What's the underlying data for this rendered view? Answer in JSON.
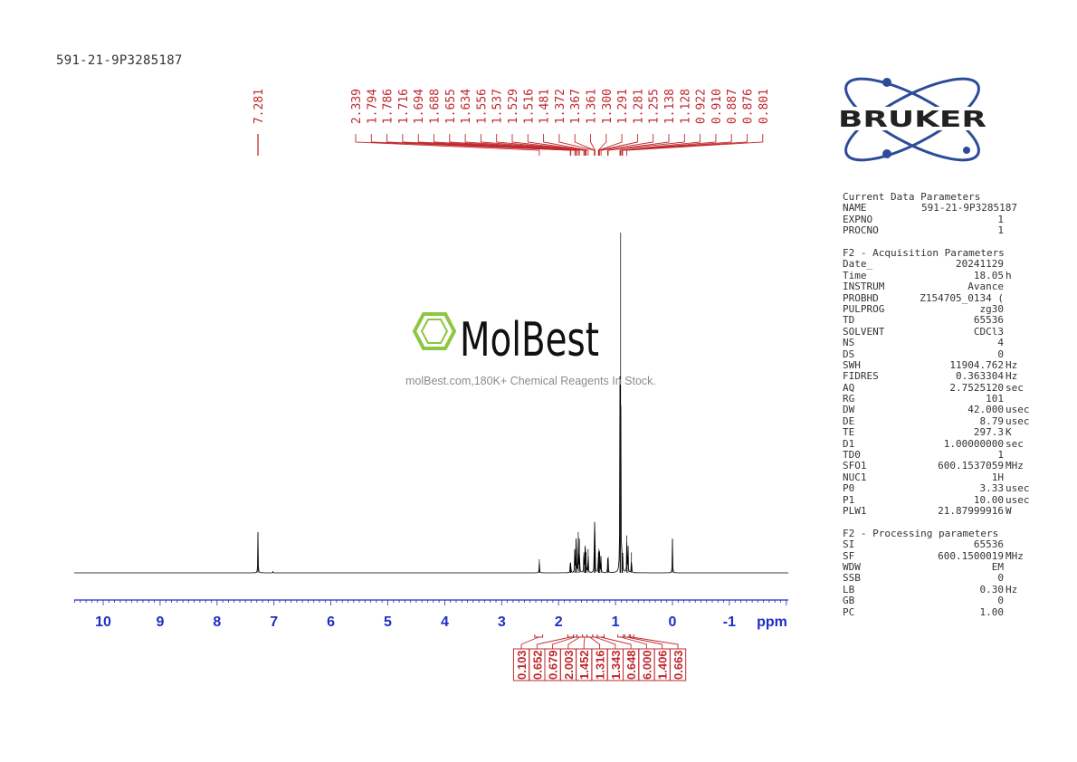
{
  "sample_name": "591-21-9P3285187",
  "watermark": {
    "brand": "MolBest",
    "tagline": "molBest.com,180K+ Chemical Reagents In Stock."
  },
  "logo": {
    "brand": "BRUKER"
  },
  "colors": {
    "spectrum": "#000000",
    "peak_labels": "#c0282d",
    "axis": "#1f2ec2",
    "params": "#333333",
    "molbest_green": "#8dc63f"
  },
  "parameters": {
    "current": {
      "header": "Current Data Parameters",
      "rows": [
        {
          "key": "NAME",
          "value": "591-21-9P3285187",
          "unit": ""
        },
        {
          "key": "EXPNO",
          "value": "1",
          "unit": ""
        },
        {
          "key": "PROCNO",
          "value": "1",
          "unit": ""
        }
      ]
    },
    "acquisition": {
      "header": "F2 - Acquisition Parameters",
      "rows": [
        {
          "key": "Date_",
          "value": "20241129",
          "unit": ""
        },
        {
          "key": "Time",
          "value": "18.05",
          "unit": "h"
        },
        {
          "key": "INSTRUM",
          "value": "Avance",
          "unit": ""
        },
        {
          "key": "PROBHD",
          "value": "Z154705_0134 (",
          "unit": ""
        },
        {
          "key": "PULPROG",
          "value": "zg30",
          "unit": ""
        },
        {
          "key": "TD",
          "value": "65536",
          "unit": ""
        },
        {
          "key": "SOLVENT",
          "value": "CDCl3",
          "unit": ""
        },
        {
          "key": "NS",
          "value": "4",
          "unit": ""
        },
        {
          "key": "DS",
          "value": "0",
          "unit": ""
        },
        {
          "key": "SWH",
          "value": "11904.762",
          "unit": "Hz"
        },
        {
          "key": "FIDRES",
          "value": "0.363304",
          "unit": "Hz"
        },
        {
          "key": "AQ",
          "value": "2.7525120",
          "unit": "sec"
        },
        {
          "key": "RG",
          "value": "101",
          "unit": ""
        },
        {
          "key": "DW",
          "value": "42.000",
          "unit": "usec"
        },
        {
          "key": "DE",
          "value": "8.79",
          "unit": "usec"
        },
        {
          "key": "TE",
          "value": "297.3",
          "unit": "K"
        },
        {
          "key": "D1",
          "value": "1.00000000",
          "unit": "sec"
        },
        {
          "key": "TD0",
          "value": "1",
          "unit": ""
        },
        {
          "key": "SFO1",
          "value": "600.1537059",
          "unit": "MHz"
        },
        {
          "key": "NUC1",
          "value": "1H",
          "unit": ""
        },
        {
          "key": "P0",
          "value": "3.33",
          "unit": "usec"
        },
        {
          "key": "P1",
          "value": "10.00",
          "unit": "usec"
        },
        {
          "key": "PLW1",
          "value": "21.87999916",
          "unit": "W"
        }
      ]
    },
    "processing": {
      "header": "F2 - Processing parameters",
      "rows": [
        {
          "key": "SI",
          "value": "65536",
          "unit": ""
        },
        {
          "key": "SF",
          "value": "600.1500019",
          "unit": "MHz"
        },
        {
          "key": "WDW",
          "value": "EM",
          "unit": ""
        },
        {
          "key": "SSB",
          "value": "0",
          "unit": ""
        },
        {
          "key": "LB",
          "value": "0.30",
          "unit": "Hz"
        },
        {
          "key": "GB",
          "value": "0",
          "unit": ""
        },
        {
          "key": "PC",
          "value": "1.00",
          "unit": ""
        }
      ]
    }
  },
  "chart_data": {
    "type": "line",
    "title": "",
    "xlabel": "ppm",
    "ylabel": "",
    "xlim": [
      10.5,
      -2.0
    ],
    "x_reversed": true,
    "grid": false,
    "x_ticks": [
      10,
      9,
      8,
      7,
      6,
      5,
      4,
      3,
      2,
      1,
      0,
      -1
    ],
    "x_tick_labels": [
      "10",
      "9",
      "8",
      "7",
      "6",
      "5",
      "4",
      "3",
      "2",
      "1",
      "0",
      "-1"
    ],
    "peak_labels": [
      "7.281",
      "2.339",
      "1.794",
      "1.786",
      "1.716",
      "1.694",
      "1.688",
      "1.655",
      "1.634",
      "1.556",
      "1.537",
      "1.529",
      "1.516",
      "1.481",
      "1.372",
      "1.367",
      "1.361",
      "1.300",
      "1.291",
      "1.281",
      "1.255",
      "1.138",
      "1.128",
      "0.922",
      "0.910",
      "0.887",
      "0.876",
      "0.801"
    ],
    "peaks": [
      {
        "ppm": 7.281,
        "intensity": 0.12
      },
      {
        "ppm": 7.02,
        "intensity": 0.004
      },
      {
        "ppm": 2.339,
        "intensity": 0.04
      },
      {
        "ppm": 1.794,
        "intensity": 0.03
      },
      {
        "ppm": 1.786,
        "intensity": 0.03
      },
      {
        "ppm": 1.716,
        "intensity": 0.07
      },
      {
        "ppm": 1.694,
        "intensity": 0.08
      },
      {
        "ppm": 1.688,
        "intensity": 0.07
      },
      {
        "ppm": 1.655,
        "intensity": 0.12
      },
      {
        "ppm": 1.634,
        "intensity": 0.1
      },
      {
        "ppm": 1.556,
        "intensity": 0.06
      },
      {
        "ppm": 1.537,
        "intensity": 0.08
      },
      {
        "ppm": 1.529,
        "intensity": 0.07
      },
      {
        "ppm": 1.516,
        "intensity": 0.06
      },
      {
        "ppm": 1.481,
        "intensity": 0.07
      },
      {
        "ppm": 1.372,
        "intensity": 0.08
      },
      {
        "ppm": 1.367,
        "intensity": 0.1
      },
      {
        "ppm": 1.361,
        "intensity": 0.09
      },
      {
        "ppm": 1.3,
        "intensity": 0.06
      },
      {
        "ppm": 1.291,
        "intensity": 0.07
      },
      {
        "ppm": 1.281,
        "intensity": 0.06
      },
      {
        "ppm": 1.255,
        "intensity": 0.05
      },
      {
        "ppm": 1.138,
        "intensity": 0.04
      },
      {
        "ppm": 1.128,
        "intensity": 0.04
      },
      {
        "ppm": 0.922,
        "intensity": 0.5
      },
      {
        "ppm": 0.91,
        "intensity": 1.0
      },
      {
        "ppm": 0.887,
        "intensity": 0.06
      },
      {
        "ppm": 0.876,
        "intensity": 0.05
      },
      {
        "ppm": 0.801,
        "intensity": 0.11
      },
      {
        "ppm": 0.78,
        "intensity": 0.08
      },
      {
        "ppm": 0.72,
        "intensity": 0.06
      },
      {
        "ppm": 0.0,
        "intensity": 0.1
      }
    ],
    "integrals": [
      {
        "value": "0.103",
        "from": 2.42,
        "to": 2.28
      },
      {
        "value": "0.652",
        "from": 1.84,
        "to": 1.74
      },
      {
        "value": "0.679",
        "from": 1.74,
        "to": 1.68
      },
      {
        "value": "2.003",
        "from": 1.68,
        "to": 1.58
      },
      {
        "value": "1.452",
        "from": 1.58,
        "to": 1.5
      },
      {
        "value": "1.316",
        "from": 1.5,
        "to": 1.4
      },
      {
        "value": "1.343",
        "from": 1.4,
        "to": 1.32
      },
      {
        "value": "0.648",
        "from": 1.32,
        "to": 1.2
      },
      {
        "value": "6.000",
        "from": 0.96,
        "to": 0.86
      },
      {
        "value": "1.406",
        "from": 0.84,
        "to": 0.76
      },
      {
        "value": "0.663",
        "from": 0.74,
        "to": 0.68
      }
    ]
  }
}
